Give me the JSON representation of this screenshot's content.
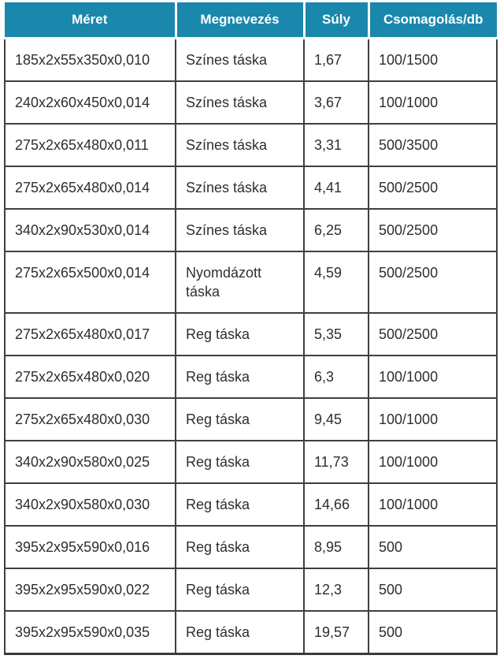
{
  "table": {
    "columns": [
      {
        "key": "meret",
        "label": "Méret"
      },
      {
        "key": "megnevezes",
        "label": "Megnevezés"
      },
      {
        "key": "suly",
        "label": "Súly"
      },
      {
        "key": "csomagolas",
        "label": "Csomagolás/db"
      }
    ],
    "rows": [
      [
        "185x2x55x350x0,010",
        "Színes táska",
        "1,67",
        "100/1500"
      ],
      [
        "240x2x60x450x0,014",
        "Színes táska",
        "3,67",
        "100/1000"
      ],
      [
        "275x2x65x480x0,011",
        "Színes táska",
        "3,31",
        "500/3500"
      ],
      [
        "275x2x65x480x0,014",
        "Színes táska",
        "4,41",
        "500/2500"
      ],
      [
        "340x2x90x530x0,014",
        "Színes táska",
        "6,25",
        "500/2500"
      ],
      [
        "275x2x65x500x0,014",
        "Nyomdázott táska",
        "4,59",
        "500/2500"
      ],
      [
        "275x2x65x480x0,017",
        "Reg táska",
        "5,35",
        "500/2500"
      ],
      [
        "275x2x65x480x0,020",
        "Reg táska",
        "6,3",
        "100/1000"
      ],
      [
        "275x2x65x480x0,030",
        "Reg táska",
        "9,45",
        "100/1000"
      ],
      [
        "340x2x90x580x0,025",
        "Reg táska",
        "11,73",
        "100/1000"
      ],
      [
        "340x2x90x580x0,030",
        "Reg táska",
        "14,66",
        "100/1000"
      ],
      [
        "395x2x95x590x0,016",
        "Reg táska",
        "8,95",
        "500"
      ],
      [
        "395x2x95x590x0,022",
        "Reg táska",
        "12,3",
        "500"
      ],
      [
        "395x2x95x590x0,035",
        "Reg táska",
        "19,57",
        "500"
      ]
    ]
  },
  "colors": {
    "header_background": "#1a87ad",
    "header_text": "#ffffff",
    "grid_border": "#3f3f3f",
    "body_text": "#2e2e2e",
    "page_background": "#ffffff"
  }
}
